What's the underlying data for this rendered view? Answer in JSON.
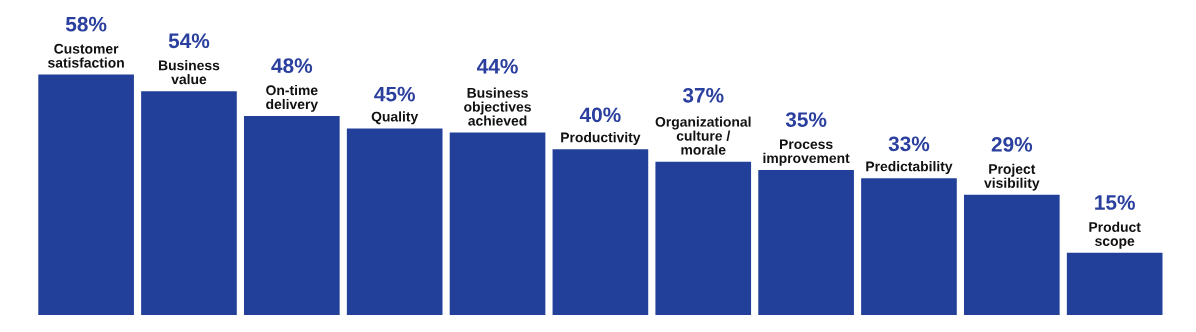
{
  "chart_data": {
    "type": "bar",
    "categories": [
      "Customer\nsatisfaction",
      "Business\nvalue",
      "On-time\ndelivery",
      "Quality",
      "Business\nobjectives\nachieved",
      "Productivity",
      "Organizational\nculture /\nmorale",
      "Process\nimprovement",
      "Predictability",
      "Project\nvisibility",
      "Product\nscope"
    ],
    "values": [
      58,
      54,
      48,
      45,
      44,
      40,
      37,
      35,
      33,
      29,
      15
    ],
    "value_labels": [
      "58%",
      "54%",
      "48%",
      "45%",
      "44%",
      "40%",
      "37%",
      "35%",
      "33%",
      "29%",
      "15%"
    ],
    "color": "#22409a"
  }
}
